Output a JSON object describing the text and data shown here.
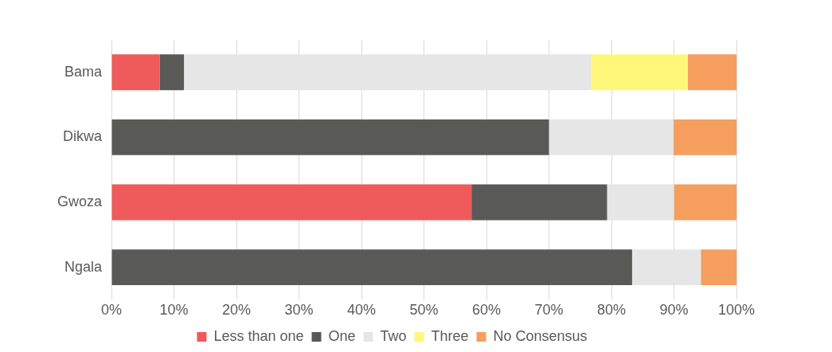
{
  "chart_data": {
    "type": "bar",
    "orientation": "horizontal",
    "stacked": true,
    "categories": [
      "Bama",
      "Dikwa",
      "Gwoza",
      "Ngala"
    ],
    "series": [
      {
        "name": "Less than one",
        "color": "#ef5a5a",
        "values": [
          7.7,
          0,
          57.6,
          0
        ]
      },
      {
        "name": "One",
        "color": "#595a58",
        "values": [
          3.9,
          70.0,
          21.7,
          83.3
        ]
      },
      {
        "name": "Two",
        "color": "#e6e6e6",
        "values": [
          65.1,
          19.9,
          10.7,
          11.0
        ]
      },
      {
        "name": "Three",
        "color": "#fff77a",
        "values": [
          15.5,
          0,
          0,
          0
        ]
      },
      {
        "name": "No Consensus",
        "color": "#f59e5e",
        "values": [
          7.8,
          10.1,
          10.0,
          5.7
        ]
      }
    ],
    "xlim": [
      0,
      100
    ],
    "xticks": [
      {
        "value": 0,
        "label": "0%"
      },
      {
        "value": 10,
        "label": "10%"
      },
      {
        "value": 20,
        "label": "20%"
      },
      {
        "value": 30,
        "label": "30%"
      },
      {
        "value": 40,
        "label": "40%"
      },
      {
        "value": 50,
        "label": "50%"
      },
      {
        "value": 60,
        "label": "60%"
      },
      {
        "value": 70,
        "label": "70%"
      },
      {
        "value": 80,
        "label": "80%"
      },
      {
        "value": 90,
        "label": "90%"
      },
      {
        "value": 100,
        "label": "100%"
      }
    ],
    "grid": "x",
    "legend": "bottom"
  }
}
